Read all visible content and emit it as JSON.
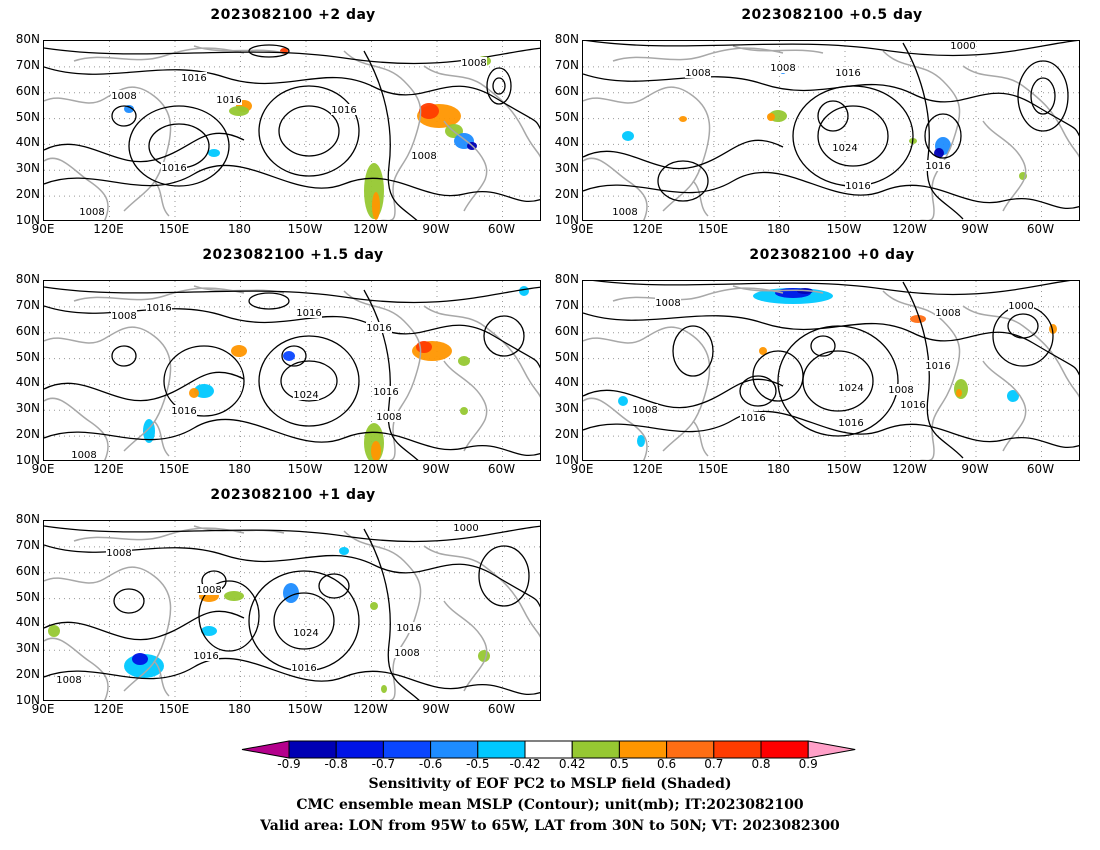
{
  "panels": [
    {
      "title": "2023082100 +2 day"
    },
    {
      "title": "2023082100 +0.5 day"
    },
    {
      "title": "2023082100 +1.5 day"
    },
    {
      "title": "2023082100 +0 day"
    },
    {
      "title": "2023082100 +1 day"
    }
  ],
  "lat_labels": [
    "80N",
    "70N",
    "60N",
    "50N",
    "40N",
    "30N",
    "20N",
    "10N"
  ],
  "lon_labels": [
    "90E",
    "120E",
    "150E",
    "180",
    "150W",
    "120W",
    "90W",
    "60W"
  ],
  "contour_labels": {
    "p0": [
      "1016",
      "1008",
      "1016",
      "1016",
      "1016",
      "1008",
      "1008",
      "1008"
    ],
    "p1": [
      "1000",
      "1008",
      "1008",
      "1016",
      "1024",
      "1016",
      "1016",
      "1008"
    ],
    "p2": [
      "1016",
      "1008",
      "1016",
      "1016",
      "1024",
      "1016",
      "1016",
      "1008",
      "1008"
    ],
    "p3": [
      "1008",
      "1008",
      "1000",
      "1016",
      "1024",
      "1016",
      "1016",
      "1008",
      "1016",
      "1008"
    ],
    "p4": [
      "1008",
      "1000",
      "1008",
      "1024",
      "1016",
      "1016",
      "1016",
      "1008",
      "1008"
    ]
  },
  "colorbar": {
    "labels": [
      "-0.9",
      "-0.8",
      "-0.7",
      "-0.6",
      "-0.5",
      "-0.42",
      "0.42",
      "0.5",
      "0.6",
      "0.7",
      "0.8",
      "0.9"
    ],
    "colors": {
      "below": "#b4008c",
      "c1": "#0000b4",
      "c2": "#0014e6",
      "c3": "#0a46ff",
      "c4": "#1e8cff",
      "c5": "#00c8ff",
      "white": "#ffffff",
      "p1": "#96c832",
      "p2": "#ff9600",
      "p3": "#ff6e14",
      "p4": "#ff3c00",
      "p5": "#ff0000",
      "above": "#ffa0c8"
    }
  },
  "caption": {
    "line1": "Sensitivity of EOF PC2 to MSLP field (Shaded)",
    "line2": "CMC ensemble mean MSLP (Contour); unit(mb); IT:2023082100",
    "line3": "Valid area: LON from 95W to 65W, LAT from 30N to 50N; VT: 2023082300"
  }
}
